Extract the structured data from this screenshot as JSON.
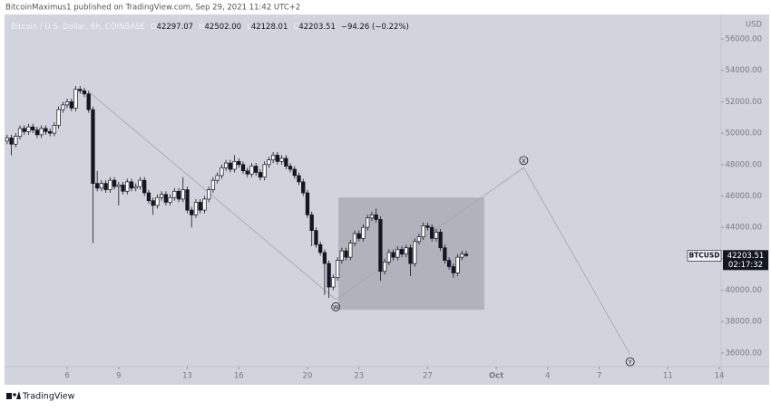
{
  "attribution": "BitcoinMaximus1 published on TradingView.com, Sep 29, 2021 11:42 UTC+2",
  "footer": "TradingView",
  "chart_data": {
    "type": "candlestick",
    "symbol": "Bitcoin / U.S. Dollar, 6h, COINBASE",
    "legend": [
      {
        "label": "O",
        "value": "42297.07"
      },
      {
        "label": "H",
        "value": "42502.00"
      },
      {
        "label": "L",
        "value": "42128.01"
      },
      {
        "label": "C",
        "value": "42203.51"
      }
    ],
    "change": "−94.26 (−0.22%)",
    "currency": "USD",
    "ticker": "BTCUSD",
    "price_label": "42203.51",
    "countdown": "02:17:32",
    "up_color": "#ffffff",
    "down_color": "#131722",
    "background": "#d1d4dc",
    "grid": false,
    "x": [
      2.5,
      2.75,
      3,
      3.25,
      3.5,
      3.75,
      4,
      4.25,
      4.5,
      4.75,
      5,
      5.25,
      5.5,
      5.75,
      6,
      6.25,
      6.5,
      6.75,
      7,
      7.25,
      7.5,
      7.75,
      8,
      8.25,
      8.5,
      8.75,
      9,
      9.25,
      9.5,
      9.75,
      10,
      10.25,
      10.5,
      10.75,
      11,
      11.25,
      11.5,
      11.75,
      12,
      12.25,
      12.5,
      12.75,
      13,
      13.25,
      13.5,
      13.75,
      14,
      14.25,
      14.5,
      14.75,
      15,
      15.25,
      15.5,
      15.75,
      16,
      16.25,
      16.5,
      16.75,
      17,
      17.25,
      17.5,
      17.75,
      18,
      18.25,
      18.5,
      18.75,
      19,
      19.25,
      19.5,
      19.75,
      20,
      20.25,
      20.5,
      20.75,
      21,
      21.25,
      21.5,
      21.75,
      22,
      22.25,
      22.5,
      22.75,
      23,
      23.25,
      23.5,
      23.75,
      24,
      24.25,
      24.5,
      24.75,
      25,
      25.25,
      25.5,
      25.75,
      26,
      26.25,
      26.5,
      26.75,
      27,
      27.25,
      27.5,
      27.75,
      28,
      28.25,
      28.5,
      28.75,
      29,
      29.25
    ],
    "open": [
      49500,
      49700,
      49300,
      49800,
      50300,
      50100,
      50400,
      50200,
      49900,
      50300,
      50100,
      50000,
      50500,
      51500,
      51800,
      52000,
      51600,
      52800,
      52700,
      52500,
      51500,
      46800,
      46500,
      46800,
      46400,
      47000,
      46600,
      46700,
      46300,
      46900,
      46500,
      46600,
      47000,
      46200,
      45700,
      45400,
      45900,
      46100,
      45600,
      45900,
      46300,
      45800,
      46400,
      45100,
      44800,
      45600,
      45100,
      45800,
      46400,
      47000,
      47300,
      47800,
      48100,
      47700,
      48200,
      48000,
      47600,
      47400,
      47900,
      47500,
      47200,
      48000,
      48300,
      48600,
      48200,
      48400,
      47900,
      47700,
      47300,
      46900,
      46200,
      44800,
      43800,
      42900,
      42400,
      41700,
      40200,
      40800,
      41900,
      42500,
      42100,
      43000,
      43600,
      43300,
      44000,
      44600,
      44800,
      44500,
      41200,
      41800,
      42400,
      42100,
      42600,
      42300,
      42700,
      41700,
      43100,
      43400,
      44100,
      44000,
      43300,
      43700,
      42700,
      41900,
      41500,
      41100,
      42100,
      42297.07
    ],
    "high": [
      49900,
      49900,
      50000,
      50500,
      50500,
      50600,
      50600,
      50400,
      50500,
      50500,
      50300,
      50700,
      51700,
      52000,
      52200,
      52200,
      53000,
      53000,
      52900,
      52700,
      51700,
      47600,
      47000,
      47000,
      47200,
      47200,
      46900,
      46900,
      47100,
      47100,
      46800,
      47200,
      47200,
      46400,
      45900,
      46100,
      46300,
      46300,
      46100,
      46500,
      46500,
      47200,
      46600,
      45300,
      45800,
      45800,
      46000,
      46600,
      47200,
      47500,
      48000,
      48300,
      48300,
      48600,
      48400,
      48200,
      47800,
      48100,
      48100,
      47700,
      48200,
      48500,
      48800,
      48800,
      48600,
      48600,
      48100,
      47900,
      47500,
      47100,
      46400,
      45000,
      44000,
      43100,
      42600,
      41900,
      41000,
      42100,
      42700,
      42700,
      43200,
      43800,
      43800,
      44200,
      44800,
      45000,
      45200,
      44700,
      42000,
      42600,
      42600,
      42800,
      42800,
      42900,
      42900,
      43300,
      43600,
      44300,
      44300,
      44200,
      43900,
      43900,
      42900,
      42100,
      41700,
      42300,
      42500,
      42502
    ],
    "low": [
      49300,
      48600,
      49100,
      49600,
      49900,
      49900,
      50000,
      49700,
      49700,
      49900,
      49800,
      49800,
      50300,
      51300,
      51600,
      51400,
      51400,
      52500,
      52300,
      51300,
      43000,
      46300,
      46300,
      46200,
      46200,
      46400,
      45400,
      46100,
      46100,
      46300,
      46300,
      46400,
      46000,
      45500,
      44800,
      45200,
      45700,
      45400,
      45400,
      45700,
      45600,
      45600,
      44900,
      44000,
      44600,
      44900,
      44900,
      45600,
      46200,
      46800,
      47100,
      47600,
      47500,
      47500,
      47800,
      47400,
      47200,
      47200,
      47300,
      47000,
      47000,
      47800,
      48100,
      48000,
      48000,
      47700,
      47500,
      47100,
      46700,
      46000,
      44600,
      42800,
      42700,
      42200,
      39700,
      39500,
      40000,
      40600,
      41700,
      41900,
      41900,
      42800,
      43100,
      43100,
      43800,
      44400,
      44300,
      40600,
      41000,
      41600,
      41900,
      41900,
      42100,
      42100,
      40900,
      41500,
      42900,
      43200,
      43800,
      43100,
      43100,
      42500,
      41700,
      41300,
      40800,
      40900,
      41900,
      42128.01
    ],
    "close": [
      49700,
      49300,
      49800,
      50300,
      50100,
      50400,
      50200,
      49900,
      50300,
      50100,
      50000,
      50500,
      51500,
      51800,
      52000,
      51600,
      52800,
      52700,
      52500,
      51500,
      46800,
      46500,
      46800,
      46400,
      47000,
      46600,
      46700,
      46300,
      46900,
      46500,
      46600,
      47000,
      46200,
      45700,
      45400,
      45900,
      46100,
      45600,
      45900,
      46300,
      45800,
      46400,
      45100,
      44800,
      45600,
      45100,
      45800,
      46400,
      47000,
      47300,
      47800,
      48100,
      47700,
      48200,
      48000,
      47600,
      47400,
      47900,
      47500,
      47200,
      48000,
      48300,
      48600,
      48200,
      48400,
      47900,
      47700,
      47300,
      46900,
      46200,
      44800,
      43800,
      42900,
      42400,
      41700,
      40200,
      40800,
      41900,
      42500,
      42100,
      43000,
      43600,
      43300,
      44000,
      44600,
      44800,
      44500,
      41200,
      41800,
      42400,
      42100,
      42600,
      42300,
      42700,
      41700,
      43100,
      43400,
      44100,
      44000,
      43300,
      43700,
      42700,
      41900,
      41500,
      41100,
      42100,
      42297.07,
      42203.51
    ],
    "xlim": [
      2.35,
      44.1
    ],
    "xticks": [
      6,
      9,
      13,
      16,
      20,
      23,
      27,
      {
        "value": 31,
        "label": "Oct"
      },
      {
        "value": 34,
        "label": "4"
      },
      {
        "value": 37,
        "label": "7"
      },
      {
        "value": 41,
        "label": "11"
      },
      {
        "value": 44,
        "label": "14"
      }
    ],
    "ylim": [
      35130,
      57560
    ],
    "yticks": [
      {
        "value": 36000,
        "label": "36000.00"
      },
      {
        "value": 38000,
        "label": "38000.00"
      },
      {
        "value": 40000,
        "label": "40000.00"
      },
      {
        "value": 42000,
        "label": "42000.00"
      },
      {
        "value": 44000,
        "label": "44000.00"
      },
      {
        "value": 46000,
        "label": "46000.00"
      },
      {
        "value": 48000,
        "label": "48000.00"
      },
      {
        "value": 50000,
        "label": "50000.00"
      },
      {
        "value": 52000,
        "label": "52000.00"
      },
      {
        "value": 54000,
        "label": "54000.00"
      },
      {
        "value": 56000,
        "label": "56000.00"
      }
    ],
    "box": {
      "x": [
        21.8,
        30.3
      ],
      "y": [
        38750,
        45900
      ],
      "color": "#9598a1"
    },
    "wave": {
      "x": [
        7.3,
        21.65,
        32.6,
        38.8
      ],
      "y": [
        52600,
        39400,
        47800,
        35900
      ],
      "labels": [
        null,
        "W",
        "X",
        "Y"
      ],
      "color": "#a3a6ad"
    }
  }
}
